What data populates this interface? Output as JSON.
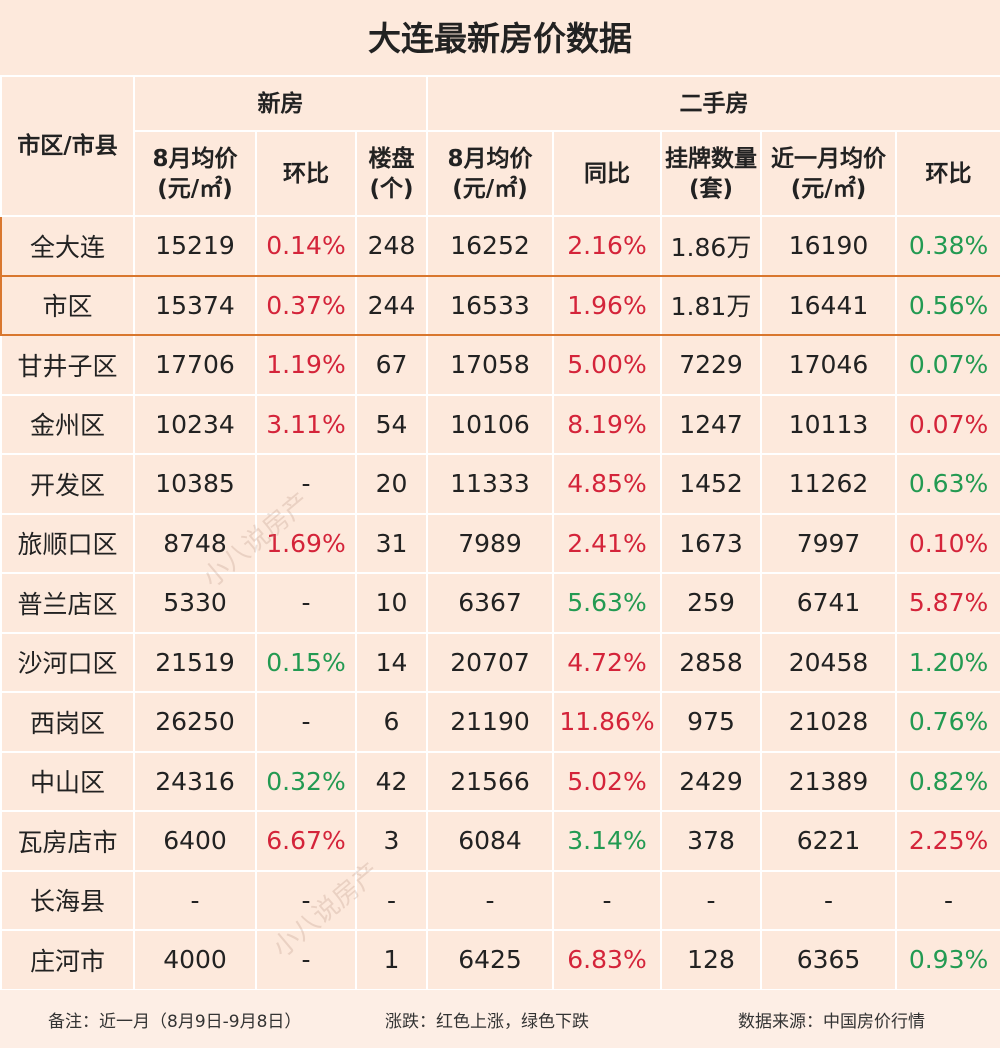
{
  "title": "大连最新房价数据",
  "headers": {
    "district": "市区/市县",
    "new_group": "新房",
    "second_group": "二手房",
    "columns": [
      "8月均价(元/㎡)",
      "环比",
      "楼盘(个)",
      "8月均价(元/㎡)",
      "同比",
      "挂牌数量(套)",
      "近一月均价(元/㎡)",
      "环比"
    ]
  },
  "colors": {
    "rise": "#d4243a",
    "fall": "#239a52",
    "highlight_border": "#d9772e",
    "cell_bg": "#fde9dc"
  },
  "rows": [
    {
      "name": "全大连",
      "values": [
        "15219",
        "0.14%",
        "248",
        "16252",
        "2.16%",
        "1.86万",
        "16190",
        "0.38%"
      ],
      "colors": [
        "",
        "r",
        "",
        "",
        "r",
        "",
        "",
        "g"
      ]
    },
    {
      "name": "市区",
      "values": [
        "15374",
        "0.37%",
        "244",
        "16533",
        "1.96%",
        "1.81万",
        "16441",
        "0.56%"
      ],
      "colors": [
        "",
        "r",
        "",
        "",
        "r",
        "",
        "",
        "g"
      ]
    },
    {
      "name": "甘井子区",
      "values": [
        "17706",
        "1.19%",
        "67",
        "17058",
        "5.00%",
        "7229",
        "17046",
        "0.07%"
      ],
      "colors": [
        "",
        "r",
        "",
        "",
        "r",
        "",
        "",
        "g"
      ]
    },
    {
      "name": "金州区",
      "values": [
        "10234",
        "3.11%",
        "54",
        "10106",
        "8.19%",
        "1247",
        "10113",
        "0.07%"
      ],
      "colors": [
        "",
        "r",
        "",
        "",
        "r",
        "",
        "",
        "r"
      ]
    },
    {
      "name": "开发区",
      "values": [
        "10385",
        "-",
        "20",
        "11333",
        "4.85%",
        "1452",
        "11262",
        "0.63%"
      ],
      "colors": [
        "",
        "",
        "",
        "",
        "r",
        "",
        "",
        "g"
      ]
    },
    {
      "name": "旅顺口区",
      "values": [
        "8748",
        "1.69%",
        "31",
        "7989",
        "2.41%",
        "1673",
        "7997",
        "0.10%"
      ],
      "colors": [
        "",
        "r",
        "",
        "",
        "r",
        "",
        "",
        "r"
      ]
    },
    {
      "name": "普兰店区",
      "values": [
        "5330",
        "-",
        "10",
        "6367",
        "5.63%",
        "259",
        "6741",
        "5.87%"
      ],
      "colors": [
        "",
        "",
        "",
        "",
        "g",
        "",
        "",
        "r"
      ]
    },
    {
      "name": "沙河口区",
      "values": [
        "21519",
        "0.15%",
        "14",
        "20707",
        "4.72%",
        "2858",
        "20458",
        "1.20%"
      ],
      "colors": [
        "",
        "g",
        "",
        "",
        "r",
        "",
        "",
        "g"
      ]
    },
    {
      "name": "西岗区",
      "values": [
        "26250",
        "-",
        "6",
        "21190",
        "11.86%",
        "975",
        "21028",
        "0.76%"
      ],
      "colors": [
        "",
        "",
        "",
        "",
        "r",
        "",
        "",
        "g"
      ]
    },
    {
      "name": "中山区",
      "values": [
        "24316",
        "0.32%",
        "42",
        "21566",
        "5.02%",
        "2429",
        "21389",
        "0.82%"
      ],
      "colors": [
        "",
        "g",
        "",
        "",
        "r",
        "",
        "",
        "g"
      ]
    },
    {
      "name": "瓦房店市",
      "values": [
        "6400",
        "6.67%",
        "3",
        "6084",
        "3.14%",
        "378",
        "6221",
        "2.25%"
      ],
      "colors": [
        "",
        "r",
        "",
        "",
        "g",
        "",
        "",
        "r"
      ]
    },
    {
      "name": "长海县",
      "values": [
        "-",
        "-",
        "-",
        "-",
        "-",
        "-",
        "-",
        "-"
      ],
      "colors": [
        "",
        "",
        "",
        "",
        "",
        "",
        "",
        ""
      ]
    },
    {
      "name": "庄河市",
      "values": [
        "4000",
        "-",
        "1",
        "6425",
        "6.83%",
        "128",
        "6365",
        "0.93%"
      ],
      "colors": [
        "",
        "",
        "",
        "",
        "r",
        "",
        "",
        "g"
      ]
    }
  ],
  "footer": {
    "note": "备注：近一月（8月9日-9月8日）",
    "legend": "涨跌：红色上涨，绿色下跌",
    "source": "数据来源：中国房价行情"
  },
  "watermark": "小八说房产"
}
